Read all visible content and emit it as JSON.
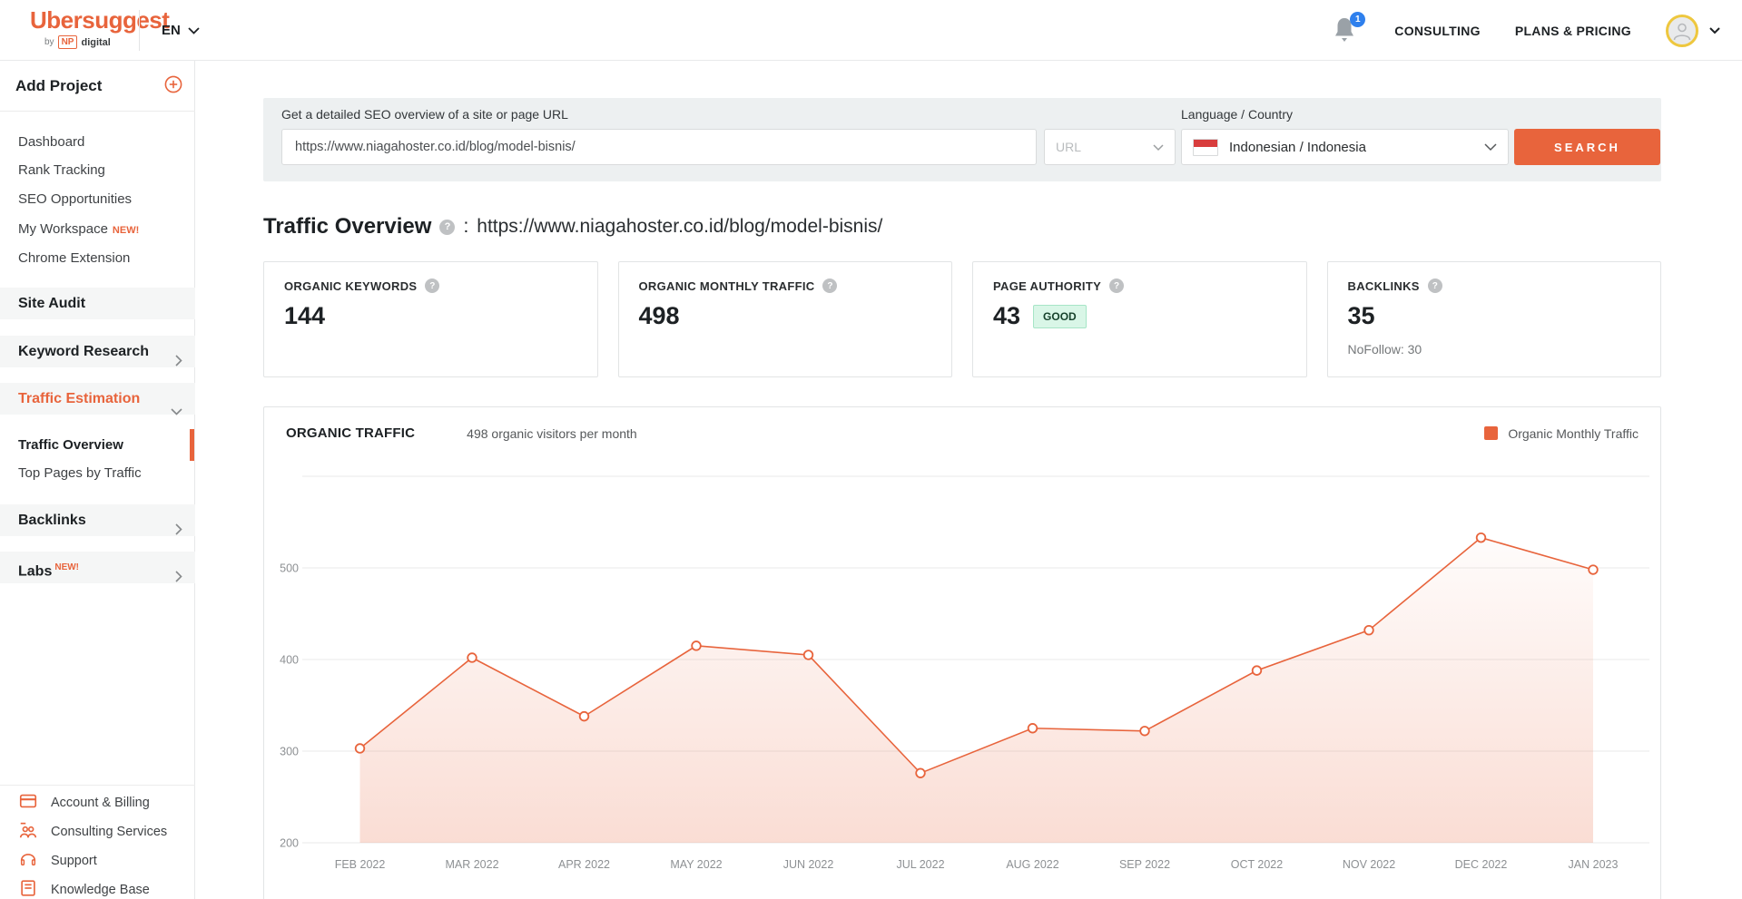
{
  "topbar": {
    "logo": {
      "title": "Ubersuggest",
      "by": "by",
      "np": "NP",
      "digital": "digital"
    },
    "language": "EN",
    "notification_count": "1",
    "consulting": "CONSULTING",
    "plans_pricing": "PLANS & PRICING"
  },
  "sidebar": {
    "add_project": "Add Project",
    "items": [
      {
        "label": "Dashboard"
      },
      {
        "label": "Rank Tracking"
      },
      {
        "label": "SEO Opportunities"
      },
      {
        "label": "My Workspace",
        "badge": "NEW!"
      },
      {
        "label": "Chrome Extension"
      }
    ],
    "site_audit": "Site Audit",
    "keyword_research": "Keyword Research",
    "traffic_estimation": "Traffic Estimation",
    "traffic_sub": [
      {
        "label": "Traffic Overview",
        "active": true
      },
      {
        "label": "Top Pages by Traffic"
      }
    ],
    "backlinks": "Backlinks",
    "labs": "Labs",
    "labs_badge": "NEW!",
    "bottom_items": [
      {
        "label": "Account & Billing",
        "icon": "credit-card-icon"
      },
      {
        "label": "Consulting Services",
        "icon": "people-icon"
      },
      {
        "label": "Support",
        "icon": "headset-icon"
      },
      {
        "label": "Knowledge Base",
        "icon": "document-icon"
      }
    ]
  },
  "search_panel": {
    "label": "Get a detailed SEO overview of a site or page URL",
    "url_value": "https://www.niagahoster.co.id/blog/model-bisnis/",
    "type_select": "URL",
    "language_label": "Language / Country",
    "language_value": "Indonesian / Indonesia",
    "search_button": "SEARCH"
  },
  "overview": {
    "title": "Traffic Overview",
    "separator": ":",
    "url": "https://www.niagahoster.co.id/blog/model-bisnis/",
    "cards": [
      {
        "title": "ORGANIC KEYWORDS",
        "value": "144"
      },
      {
        "title": "ORGANIC MONTHLY TRAFFIC",
        "value": "498"
      },
      {
        "title": "PAGE AUTHORITY",
        "value": "43",
        "badge": "GOOD"
      },
      {
        "title": "BACKLINKS",
        "value": "35",
        "sub": "NoFollow: 30"
      }
    ]
  },
  "chart_data": {
    "type": "area",
    "title": "ORGANIC TRAFFIC",
    "subtitle": "498 organic visitors per month",
    "legend": [
      {
        "label": "Organic Monthly Traffic",
        "color": "#e8643c"
      }
    ],
    "legend_position": "top-right",
    "categories": [
      "FEB 2022",
      "MAR 2022",
      "APR 2022",
      "MAY 2022",
      "JUN 2022",
      "JUL 2022",
      "AUG 2022",
      "SEP 2022",
      "OCT 2022",
      "NOV 2022",
      "DEC 2022",
      "JAN 2023"
    ],
    "values": [
      303,
      402,
      338,
      415,
      405,
      276,
      325,
      322,
      388,
      432,
      533,
      498
    ],
    "xlabel": "",
    "ylabel": "",
    "ylim": [
      200,
      600
    ],
    "yticks": [
      200,
      300,
      400,
      500
    ],
    "grid": true,
    "line_color": "#e8643c",
    "grid_color": "#e9eaea",
    "axis_label_color": "#8d9093"
  },
  "icons": {
    "help": "?"
  },
  "colors": {
    "accent": "#e8643c",
    "notification_blue": "#2f80ed",
    "avatar_ring_gold": "#eec73e",
    "good_badge_bg": "#d9f6e7",
    "good_badge_border": "#a6e5c6",
    "flag_red": "#d83d3d",
    "panel_bg": "#edf0f1"
  }
}
